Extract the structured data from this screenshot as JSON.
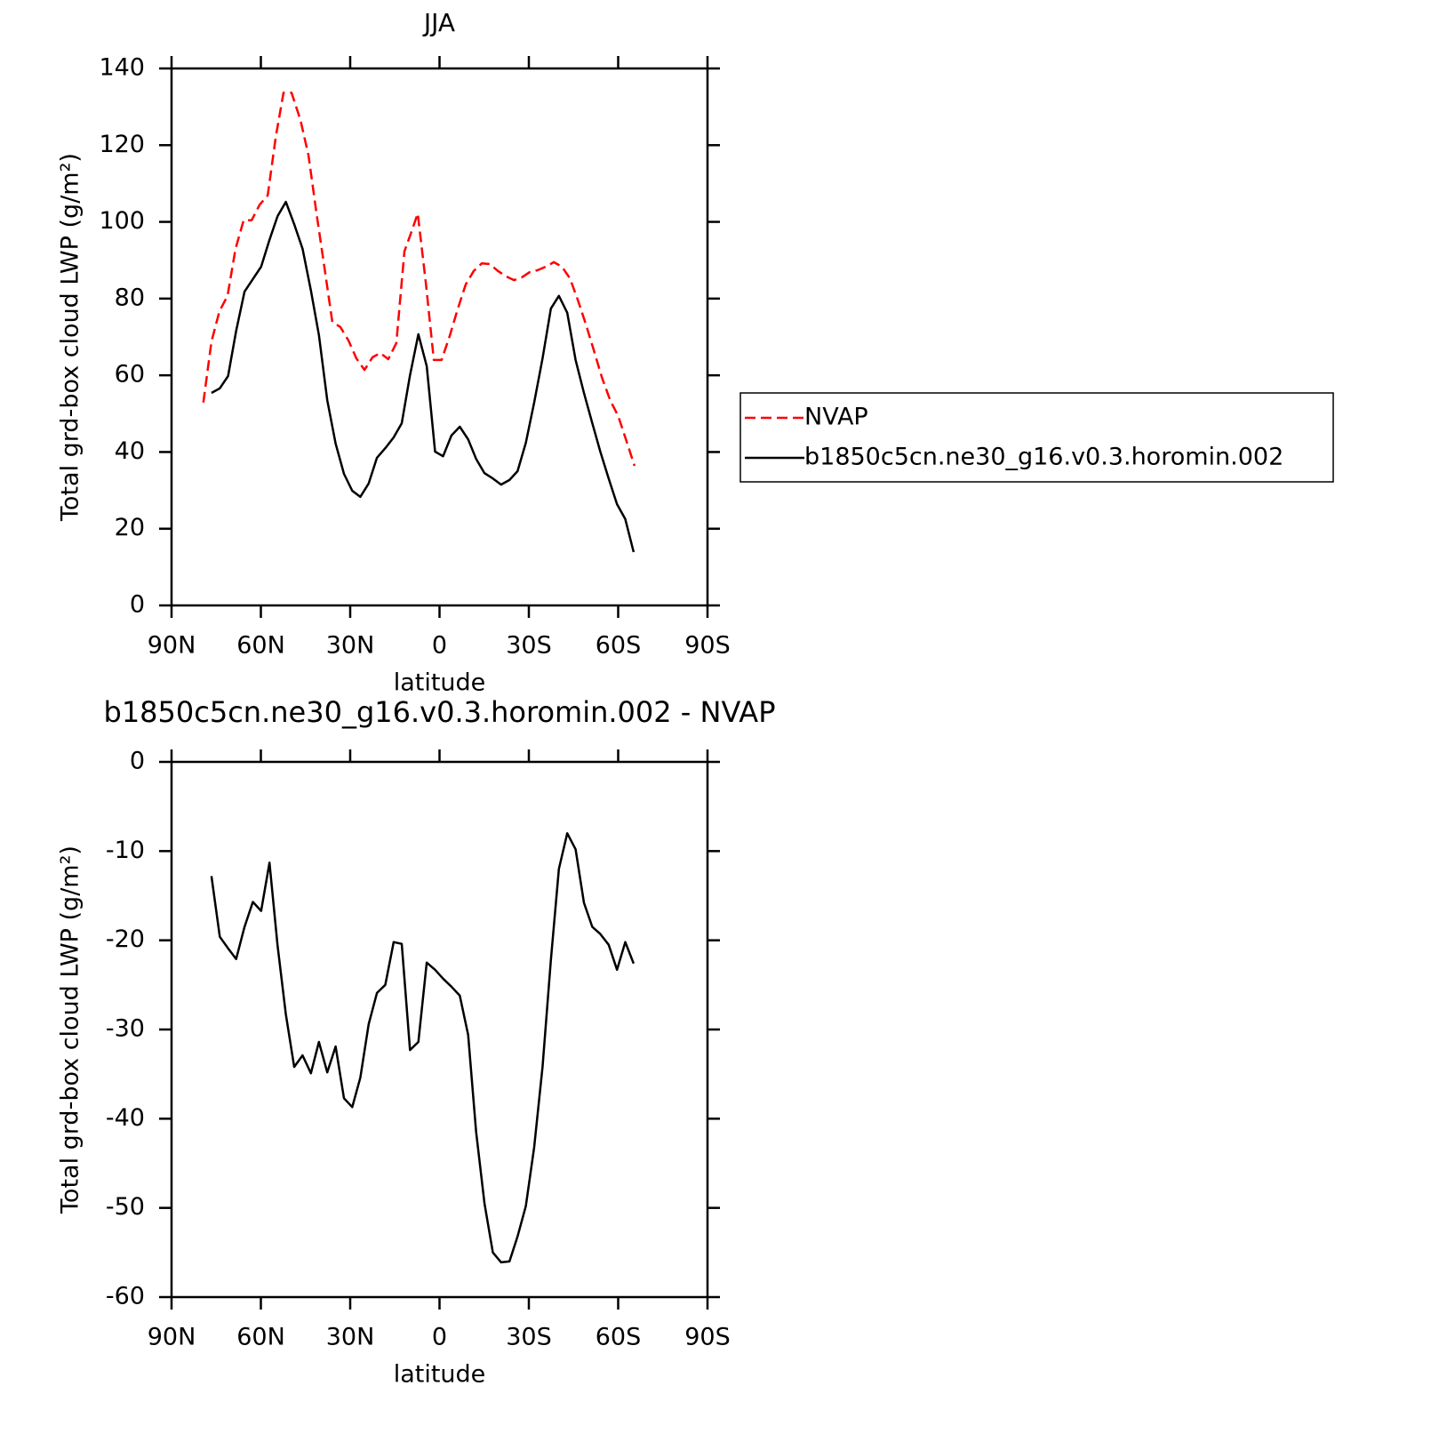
{
  "chart_data": [
    {
      "type": "line",
      "title": "JJA",
      "x_label": "latitude",
      "y_label": "Total grd-box cloud LWP (g/m²)",
      "xlim": [
        90,
        -90
      ],
      "xticks": [
        {
          "value": 90,
          "label": "90N"
        },
        {
          "value": 60,
          "label": "60N"
        },
        {
          "value": 30,
          "label": "30N"
        },
        0,
        {
          "value": -30,
          "label": "30S"
        },
        {
          "value": -60,
          "label": "60S"
        },
        {
          "value": -90,
          "label": "90S"
        }
      ],
      "ylim": [
        0,
        140
      ],
      "yticks": [
        0,
        20,
        40,
        60,
        80,
        100,
        120,
        140
      ],
      "legend": "right",
      "series": [
        {
          "name": "NVAP",
          "color": "#ff0000",
          "line_style": "dashed",
          "x": [
            79.3,
            76.6,
            73.9,
            71.2,
            68.5,
            65.8,
            63.1,
            60.4,
            57.7,
            55.0,
            52.4,
            49.7,
            46.7,
            44.0,
            41.3,
            38.7,
            36.0,
            33.3,
            30.6,
            27.9,
            25.2,
            22.5,
            19.9,
            17.2,
            14.5,
            11.8,
            9.6,
            7.3,
            4.6,
            1.9,
            -0.7,
            -3.4,
            -6.1,
            -8.8,
            -11.5,
            -14.2,
            -16.9,
            -19.6,
            -22.3,
            -25.0,
            -27.6,
            -30.3,
            -33.0,
            -35.7,
            -38.4,
            -41.1,
            -43.8,
            -46.5,
            -49.2,
            -51.9,
            -54.6,
            -57.3,
            -60.0,
            -62.7,
            -65.5
          ],
          "values": [
            52.9,
            68.8,
            76.7,
            80.7,
            93.0,
            100.4,
            100.4,
            104.5,
            106.9,
            122.2,
            133.7,
            133.7,
            126.5,
            117.3,
            102.2,
            88.3,
            73.9,
            72.6,
            69.1,
            64.4,
            61.4,
            64.7,
            65.8,
            64.2,
            68.4,
            92.3,
            97.0,
            102.2,
            84.1,
            64.0,
            64.0,
            70.2,
            77.2,
            83.7,
            87.2,
            89.2,
            89.0,
            87.2,
            85.8,
            84.8,
            85.5,
            86.9,
            87.4,
            88.3,
            89.5,
            88.3,
            85.3,
            79.5,
            73.2,
            66.3,
            59.3,
            53.5,
            49.4,
            43.1,
            36.4
          ]
        },
        {
          "name": "b1850c5cn.ne30_g16.v0.3.horomin.002",
          "color": "#000000",
          "line_style": "solid",
          "x": [
            76.6,
            73.8,
            71.0,
            68.3,
            65.5,
            62.7,
            59.9,
            57.1,
            54.4,
            51.6,
            48.8,
            46.0,
            43.2,
            40.5,
            37.7,
            34.9,
            32.1,
            29.3,
            26.6,
            23.8,
            21.0,
            18.2,
            15.4,
            12.7,
            9.9,
            7.1,
            4.3,
            1.5,
            -1.2,
            -4.0,
            -6.8,
            -9.6,
            -12.3,
            -15.1,
            -17.9,
            -20.7,
            -23.5,
            -26.2,
            -29.0,
            -31.8,
            -34.6,
            -37.4,
            -40.1,
            -42.9,
            -45.7,
            -48.5,
            -51.3,
            -54.0,
            -56.8,
            -59.6,
            -62.4,
            -65.2
          ],
          "values": [
            55.4,
            56.6,
            59.8,
            71.6,
            81.8,
            85.1,
            88.3,
            95.3,
            101.5,
            105.2,
            99.4,
            93.0,
            82.1,
            70.5,
            53.5,
            42.2,
            34.3,
            29.9,
            28.3,
            31.8,
            38.5,
            41.0,
            43.8,
            47.5,
            60.0,
            70.7,
            62.4,
            40.1,
            38.9,
            44.3,
            46.6,
            43.3,
            38.2,
            34.5,
            33.1,
            31.5,
            32.7,
            35.0,
            42.4,
            52.9,
            64.4,
            77.4,
            80.7,
            76.3,
            64.0,
            55.4,
            47.5,
            40.1,
            33.1,
            26.4,
            22.5,
            13.9
          ]
        }
      ]
    },
    {
      "type": "line",
      "title": "b1850c5cn.ne30_g16.v0.3.horomin.002 - NVAP",
      "x_label": "latitude",
      "y_label": "Total grd-box cloud LWP (g/m²)",
      "xlim": [
        90,
        -90
      ],
      "xticks": [
        {
          "value": 90,
          "label": "90N"
        },
        {
          "value": 60,
          "label": "60N"
        },
        {
          "value": 30,
          "label": "30N"
        },
        0,
        {
          "value": -30,
          "label": "30S"
        },
        {
          "value": -60,
          "label": "60S"
        },
        {
          "value": -90,
          "label": "90S"
        }
      ],
      "ylim": [
        -60,
        0
      ],
      "yticks": [
        0,
        -10,
        -20,
        -30,
        -40,
        -50,
        -60
      ],
      "series": [
        {
          "color": "#000000",
          "line_style": "solid",
          "x": [
            76.6,
            73.8,
            71.0,
            68.3,
            65.5,
            62.7,
            59.9,
            57.1,
            54.4,
            51.6,
            48.8,
            46.0,
            43.2,
            40.5,
            37.7,
            34.9,
            32.1,
            29.3,
            26.6,
            23.8,
            21.0,
            18.2,
            15.4,
            12.7,
            9.9,
            7.1,
            4.3,
            1.5,
            -1.2,
            -4.0,
            -6.8,
            -9.6,
            -12.3,
            -15.1,
            -17.9,
            -20.7,
            -23.5,
            -26.2,
            -29.0,
            -31.8,
            -34.6,
            -37.4,
            -40.1,
            -42.9,
            -45.7,
            -48.5,
            -51.3,
            -54.0,
            -56.8,
            -59.6,
            -62.4,
            -65.2
          ],
          "values": [
            -12.8,
            -19.6,
            -20.9,
            -22.1,
            -18.5,
            -15.7,
            -16.7,
            -11.3,
            -20.6,
            -28.3,
            -34.2,
            -32.9,
            -34.9,
            -31.4,
            -34.8,
            -31.9,
            -37.7,
            -38.7,
            -35.4,
            -29.4,
            -25.9,
            -25.0,
            -20.2,
            -20.4,
            -32.3,
            -31.4,
            -22.5,
            -23.3,
            -24.3,
            -25.2,
            -26.2,
            -30.6,
            -41.5,
            -49.5,
            -55.0,
            -56.1,
            -56.0,
            -53.2,
            -49.8,
            -43.2,
            -34.2,
            -22.2,
            -12.0,
            -8.0,
            -9.8,
            -15.8,
            -18.5,
            -19.3,
            -20.5,
            -23.3,
            -20.2,
            -22.6
          ]
        }
      ]
    }
  ]
}
